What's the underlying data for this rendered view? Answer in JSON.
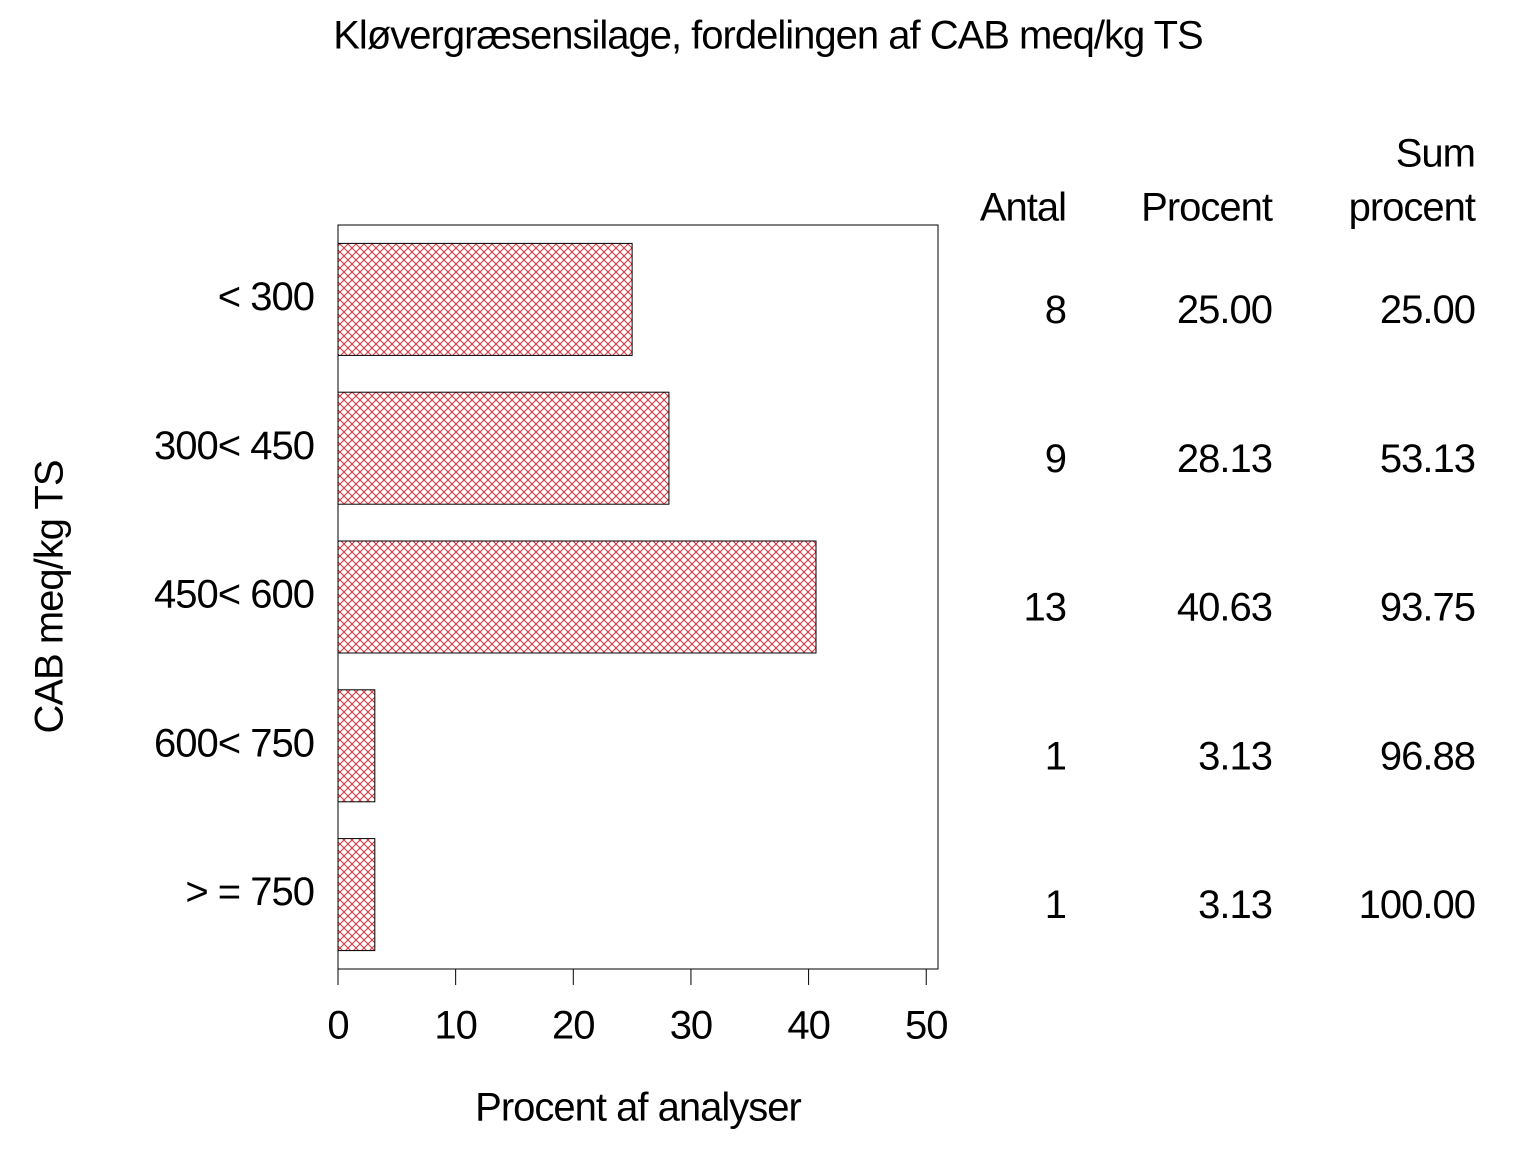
{
  "chart_data": {
    "type": "hbar",
    "title": "Kløvergræsensilage, fordelingen af CAB meq/kg TS",
    "x_label": "Procent af analyser",
    "y_label": "CAB meq/kg TS",
    "categories": [
      "< 300",
      "300< 450",
      "450< 600",
      "600< 750",
      "> = 750"
    ],
    "values": [
      25,
      28.13,
      40.63,
      3.13,
      3.13
    ],
    "value_labels": [
      "25.00",
      "28.13",
      "40.63",
      "3.13",
      "3.13"
    ],
    "color": "#e0303a",
    "xlim": [
      0,
      51
    ],
    "xticks": [
      0,
      10,
      20,
      30,
      40,
      50
    ],
    "table": {
      "columns": [
        {
          "header": [
            "Antal"
          ],
          "values": [
            8,
            9,
            13,
            1,
            1
          ]
        },
        {
          "header": [
            "Procent"
          ]
        },
        {
          "header": [
            "Sum",
            "procent"
          ],
          "values": [
            "25.00",
            "53.13",
            "93.75",
            "96.88",
            "100.00"
          ]
        }
      ]
    }
  }
}
